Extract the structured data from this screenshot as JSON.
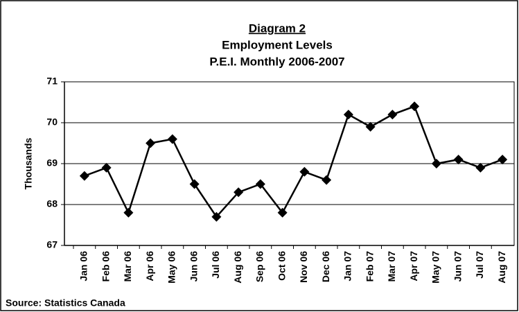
{
  "chart_data": {
    "type": "line",
    "title_lines": [
      "Diagram 2",
      "Employment Levels",
      "P.E.I. Monthly 2006-2007"
    ],
    "y_label": "Thousands",
    "source": "Source: Statistics Canada",
    "categories": [
      "Jan 06",
      "Feb 06",
      "Mar 06",
      "Apr 06",
      "May 06",
      "Jun 06",
      "Jul 06",
      "Aug 06",
      "Sep 06",
      "Oct 06",
      "Nov 06",
      "Dec 06",
      "Jan 07",
      "Feb 07",
      "Mar 07",
      "Apr 07",
      "May 07",
      "Jun 07",
      "Jul 07",
      "Aug 07"
    ],
    "values": [
      68.7,
      68.9,
      67.8,
      69.5,
      69.6,
      68.5,
      67.7,
      68.3,
      68.5,
      67.8,
      68.8,
      68.6,
      70.2,
      69.9,
      70.2,
      70.4,
      69.0,
      69.1,
      68.9,
      69.1
    ],
    "color": "#000000",
    "ylim": [
      67,
      71
    ],
    "yticks": [
      67,
      68,
      69,
      70,
      71
    ],
    "grid": true
  }
}
